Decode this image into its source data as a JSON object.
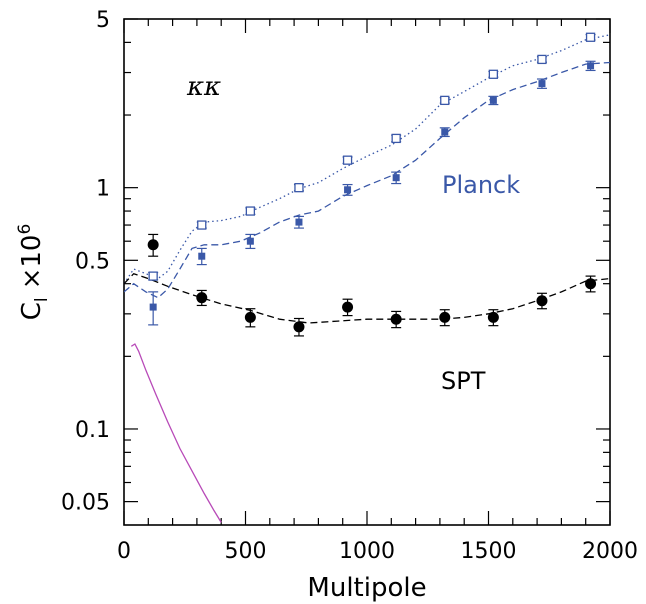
{
  "chart_data": {
    "type": "scatter",
    "title": "",
    "xlabel": "Multipole",
    "ylabel": "C_l ×10^6",
    "ylabel_main": "C",
    "ylabel_sub": "l",
    "ylabel_times": "×10",
    "ylabel_exp": "6",
    "xlim": [
      0,
      2000
    ],
    "ylim": [
      0.04,
      5
    ],
    "yscale": "log",
    "grid": false,
    "x_ticks": [
      0,
      500,
      1000,
      1500,
      2000
    ],
    "x_tick_labels": [
      "0",
      "500",
      "1000",
      "1500",
      "2000"
    ],
    "y_ticks": [
      0.05,
      0.1,
      0.5,
      1,
      5
    ],
    "y_tick_labels": [
      "0.05",
      "0.1",
      "0.5",
      "1",
      "5"
    ],
    "annotations": {
      "kk": "κκ",
      "planck": "Planck",
      "spt": "SPT"
    },
    "colors": {
      "planck": "#3a58a8",
      "spt": "#000000",
      "theory": "#b84ab8"
    },
    "series": [
      {
        "name": "Planck",
        "marker": "open-square",
        "color": "#3a58a8",
        "x": [
          120,
          320,
          520,
          720,
          920,
          1120,
          1320,
          1520,
          1720,
          1920
        ],
        "y": [
          0.43,
          0.7,
          0.8,
          1.0,
          1.3,
          1.6,
          2.3,
          2.95,
          3.4,
          4.2
        ],
        "yerr": [
          0.015,
          0.02,
          0.025,
          0.03,
          0.04,
          0.05,
          0.06,
          0.08,
          0.09,
          0.11
        ]
      },
      {
        "name": "Planck",
        "marker": "filled-square",
        "color": "#3a58a8",
        "x": [
          120,
          320,
          520,
          720,
          920,
          1120,
          1320,
          1520,
          1720,
          1920
        ],
        "y": [
          0.32,
          0.52,
          0.6,
          0.72,
          0.98,
          1.1,
          1.7,
          2.3,
          2.7,
          3.2
        ],
        "yerr": [
          0.05,
          0.04,
          0.04,
          0.04,
          0.05,
          0.06,
          0.07,
          0.09,
          0.12,
          0.14
        ]
      },
      {
        "name": "SPT",
        "marker": "filled-circle",
        "color": "#000000",
        "x": [
          120,
          320,
          520,
          720,
          920,
          1120,
          1320,
          1520,
          1720,
          1920
        ],
        "y": [
          0.58,
          0.35,
          0.29,
          0.265,
          0.32,
          0.285,
          0.29,
          0.29,
          0.34,
          0.4
        ],
        "yerr": [
          0.06,
          0.025,
          0.025,
          0.022,
          0.025,
          0.022,
          0.022,
          0.022,
          0.025,
          0.03
        ]
      },
      {
        "name": "Planck",
        "style": "dotted",
        "color": "#3a58a8",
        "x": [
          0,
          40,
          90,
          140,
          180,
          230,
          280,
          330,
          400,
          480,
          560,
          640,
          720,
          800,
          900,
          1000,
          1100,
          1200,
          1300,
          1400,
          1500,
          1600,
          1700,
          1800,
          1900,
          2000
        ],
        "y": [
          0.4,
          0.46,
          0.44,
          0.42,
          0.45,
          0.55,
          0.66,
          0.72,
          0.73,
          0.76,
          0.83,
          0.9,
          0.99,
          1.05,
          1.2,
          1.35,
          1.5,
          1.75,
          2.2,
          2.5,
          2.85,
          3.2,
          3.4,
          3.7,
          4.1,
          4.3
        ]
      },
      {
        "name": "Planck",
        "style": "dashed",
        "color": "#3a58a8",
        "x": [
          0,
          40,
          90,
          140,
          180,
          230,
          280,
          330,
          400,
          480,
          560,
          640,
          720,
          800,
          900,
          1000,
          1100,
          1200,
          1300,
          1400,
          1500,
          1600,
          1700,
          1800,
          1900,
          2000
        ],
        "y": [
          0.37,
          0.4,
          0.37,
          0.35,
          0.38,
          0.46,
          0.56,
          0.58,
          0.58,
          0.6,
          0.65,
          0.72,
          0.77,
          0.8,
          0.92,
          1.02,
          1.12,
          1.3,
          1.6,
          1.95,
          2.3,
          2.55,
          2.75,
          3.0,
          3.25,
          3.3
        ]
      },
      {
        "name": "SPT",
        "style": "dashed",
        "color": "#000000",
        "x": [
          0,
          40,
          100,
          180,
          280,
          400,
          520,
          640,
          760,
          880,
          1000,
          1100,
          1200,
          1300,
          1400,
          1500,
          1600,
          1700,
          1800,
          1900,
          2000
        ],
        "y": [
          0.4,
          0.44,
          0.42,
          0.39,
          0.36,
          0.33,
          0.31,
          0.285,
          0.275,
          0.28,
          0.285,
          0.285,
          0.285,
          0.285,
          0.29,
          0.3,
          0.315,
          0.34,
          0.37,
          0.41,
          0.42
        ]
      },
      {
        "style": "solid",
        "color": "#b84ab8",
        "x": [
          30,
          45,
          60,
          90,
          130,
          180,
          230,
          280,
          330,
          370,
          400
        ],
        "y": [
          0.22,
          0.225,
          0.21,
          0.175,
          0.14,
          0.107,
          0.083,
          0.067,
          0.054,
          0.046,
          0.041
        ]
      }
    ]
  }
}
